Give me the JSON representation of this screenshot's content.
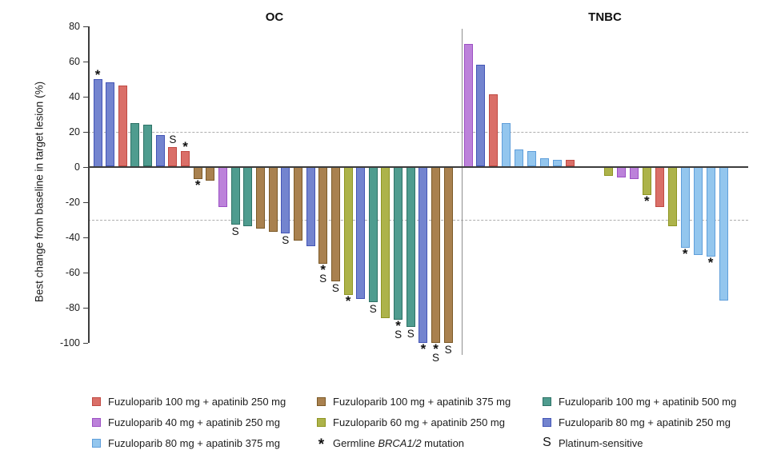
{
  "chart_data": {
    "type": "bar",
    "subtype": "waterfall",
    "ylabel": "Best change from baseline in target lesion (%)",
    "ylim": [
      -100,
      80
    ],
    "yticks": [
      80,
      60,
      40,
      20,
      0,
      -20,
      -40,
      -60,
      -80,
      -100
    ],
    "reference_lines": [
      20,
      -30
    ],
    "grid": "off",
    "legend_position": "bottom",
    "groups": {
      "fuzu100_apa250": {
        "label": "Fuzuloparib 100 mg + apatinib 250 mg",
        "fill": "#da6f68",
        "border": "#c04a43"
      },
      "fuzu100_apa375": {
        "label": "Fuzuloparib 100 mg + apatinib 375 mg",
        "fill": "#a9814f",
        "border": "#7c5a28"
      },
      "fuzu100_apa500": {
        "label": "Fuzuloparib 100 mg + apatinib 500 mg",
        "fill": "#4f9c8f",
        "border": "#2e7266"
      },
      "fuzu40_apa250": {
        "label": "Fuzuloparib 40 mg + apatinib 250 mg",
        "fill": "#bc82da",
        "border": "#9c50c4"
      },
      "fuzu60_apa250": {
        "label": "Fuzuloparib 60 mg + apatinib 250 mg",
        "fill": "#adb34a",
        "border": "#8e9522"
      },
      "fuzu80_apa250": {
        "label": "Fuzuloparib 80 mg + apatinib 250 mg",
        "fill": "#7384cf",
        "border": "#4355b6"
      },
      "fuzu80_apa375": {
        "label": "Fuzuloparib 80 mg + apatinib 375 mg",
        "fill": "#93c6ee",
        "border": "#5f9eda"
      }
    },
    "flags": {
      "brca": {
        "symbol": "*",
        "meaning": "Germline BRCA1/2 mutation"
      },
      "plat": {
        "symbol": "S",
        "meaning": "Platinum-sensitive"
      }
    },
    "panels": [
      {
        "title": "OC",
        "bars": [
          {
            "value": 50,
            "group": "fuzu80_apa250",
            "flags": [
              "brca"
            ]
          },
          {
            "value": 48,
            "group": "fuzu80_apa250"
          },
          {
            "value": 46,
            "group": "fuzu100_apa250"
          },
          {
            "value": 25,
            "group": "fuzu100_apa500"
          },
          {
            "value": 24,
            "group": "fuzu100_apa500"
          },
          {
            "value": 18,
            "group": "fuzu80_apa250"
          },
          {
            "value": 11,
            "group": "fuzu100_apa250",
            "flags": [
              "plat"
            ]
          },
          {
            "value": 9,
            "group": "fuzu100_apa250",
            "flags": [
              "brca"
            ]
          },
          {
            "value": -7,
            "group": "fuzu100_apa375",
            "flags": [
              "brca"
            ]
          },
          {
            "value": -8,
            "group": "fuzu100_apa375"
          },
          {
            "value": -23,
            "group": "fuzu40_apa250"
          },
          {
            "value": -33,
            "group": "fuzu100_apa500",
            "flags": [
              "plat"
            ]
          },
          {
            "value": -34,
            "group": "fuzu100_apa500"
          },
          {
            "value": -35,
            "group": "fuzu100_apa375"
          },
          {
            "value": -37,
            "group": "fuzu100_apa375"
          },
          {
            "value": -38,
            "group": "fuzu80_apa250",
            "flags": [
              "plat"
            ]
          },
          {
            "value": -42,
            "group": "fuzu100_apa375"
          },
          {
            "value": -45,
            "group": "fuzu80_apa250"
          },
          {
            "value": -55,
            "group": "fuzu100_apa375",
            "flags": [
              "brca",
              "plat"
            ]
          },
          {
            "value": -65,
            "group": "fuzu100_apa375",
            "flags": [
              "plat"
            ]
          },
          {
            "value": -73,
            "group": "fuzu60_apa250",
            "flags": [
              "brca"
            ]
          },
          {
            "value": -75,
            "group": "fuzu80_apa250"
          },
          {
            "value": -77,
            "group": "fuzu100_apa500",
            "flags": [
              "plat"
            ]
          },
          {
            "value": -86,
            "group": "fuzu60_apa250"
          },
          {
            "value": -87,
            "group": "fuzu100_apa500",
            "flags": [
              "brca",
              "plat"
            ]
          },
          {
            "value": -91,
            "group": "fuzu100_apa500",
            "flags": [
              "plat"
            ]
          },
          {
            "value": -100,
            "group": "fuzu80_apa250",
            "flags": [
              "brca"
            ]
          },
          {
            "value": -100,
            "group": "fuzu100_apa375",
            "flags": [
              "brca",
              "plat"
            ]
          },
          {
            "value": -100,
            "group": "fuzu100_apa375",
            "flags": [
              "plat"
            ]
          }
        ]
      },
      {
        "title": "TNBC",
        "bars": [
          {
            "value": 70,
            "group": "fuzu40_apa250"
          },
          {
            "value": 58,
            "group": "fuzu80_apa250"
          },
          {
            "value": 41,
            "group": "fuzu100_apa250"
          },
          {
            "value": 25,
            "group": "fuzu80_apa375"
          },
          {
            "value": 10,
            "group": "fuzu80_apa375"
          },
          {
            "value": 9,
            "group": "fuzu80_apa375"
          },
          {
            "value": 5,
            "group": "fuzu80_apa375"
          },
          {
            "value": 4,
            "group": "fuzu80_apa375"
          },
          {
            "value": 4,
            "group": "fuzu100_apa250"
          },
          {
            "value": 0,
            "group": null
          },
          {
            "value": 0,
            "group": null
          },
          {
            "value": -5,
            "group": "fuzu60_apa250"
          },
          {
            "value": -6,
            "group": "fuzu40_apa250"
          },
          {
            "value": -7,
            "group": "fuzu40_apa250"
          },
          {
            "value": -16,
            "group": "fuzu60_apa250",
            "flags": [
              "brca"
            ]
          },
          {
            "value": -23,
            "group": "fuzu100_apa250"
          },
          {
            "value": -34,
            "group": "fuzu60_apa250"
          },
          {
            "value": -46,
            "group": "fuzu80_apa375",
            "flags": [
              "brca"
            ]
          },
          {
            "value": -50,
            "group": "fuzu80_apa375"
          },
          {
            "value": -51,
            "group": "fuzu80_apa375",
            "flags": [
              "brca"
            ]
          },
          {
            "value": -76,
            "group": "fuzu80_apa375"
          }
        ]
      }
    ]
  },
  "legend": {
    "columns": [
      [
        {
          "type": "swatch",
          "group": "fuzu100_apa250"
        },
        {
          "type": "swatch",
          "group": "fuzu40_apa250"
        },
        {
          "type": "swatch",
          "group": "fuzu80_apa375"
        }
      ],
      [
        {
          "type": "swatch",
          "group": "fuzu100_apa375"
        },
        {
          "type": "swatch",
          "group": "fuzu60_apa250"
        },
        {
          "type": "symbol",
          "symbol": "*",
          "label_pre": "Germline ",
          "label_italic": "BRCA1/2",
          "label_post": " mutation"
        }
      ],
      [
        {
          "type": "swatch",
          "group": "fuzu100_apa500"
        },
        {
          "type": "swatch",
          "group": "fuzu80_apa250"
        },
        {
          "type": "symbol",
          "symbol": "S",
          "label_pre": "Platinum-sensitive",
          "label_italic": "",
          "label_post": ""
        }
      ]
    ]
  }
}
